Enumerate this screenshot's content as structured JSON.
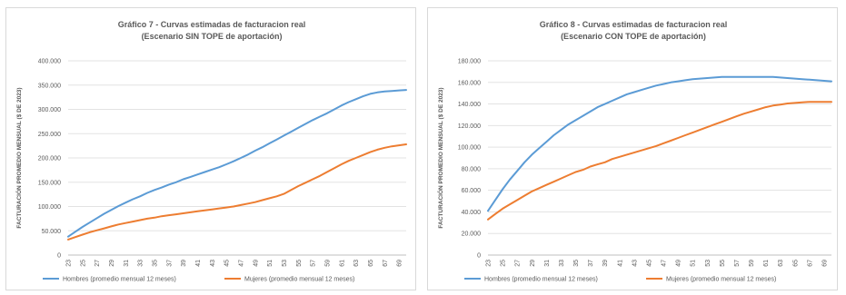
{
  "chart_data": [
    {
      "type": "line",
      "title": "Gráfico 7 - Curvas estimadas de facturacion real",
      "subtitle": "(Escenario SIN TOPE de aportación)",
      "ylabel": "FACTURACIÓN PROMEDIO MENSUAL ($ DE 2023)",
      "xlabel": "",
      "ylim": [
        0,
        400000
      ],
      "yticks": [
        "0",
        "50.000",
        "100.000",
        "150.000",
        "200.000",
        "250.000",
        "300.000",
        "350.000",
        "400.000"
      ],
      "x_tick_labels": [
        "23",
        "25",
        "27",
        "29",
        "31",
        "33",
        "35",
        "37",
        "39",
        "41",
        "43",
        "45",
        "47",
        "49",
        "51",
        "53",
        "55",
        "57",
        "59",
        "61",
        "63",
        "65",
        "67",
        "69"
      ],
      "x": [
        23,
        24,
        25,
        26,
        27,
        28,
        29,
        30,
        31,
        32,
        33,
        34,
        35,
        36,
        37,
        38,
        39,
        40,
        41,
        42,
        43,
        44,
        45,
        46,
        47,
        48,
        49,
        50,
        51,
        52,
        53,
        54,
        55,
        56,
        57,
        58,
        59,
        60,
        61,
        62,
        63,
        64,
        65,
        66,
        67,
        68,
        69,
        70
      ],
      "xlim": [
        23,
        70
      ],
      "grid": true,
      "legend_position": "bottom",
      "series": [
        {
          "name": "Hombres (promedio mensual 12 meses)",
          "color": "#5b9bd5",
          "values": [
            38000,
            48000,
            58000,
            67000,
            76000,
            85000,
            93000,
            101000,
            108000,
            115000,
            121000,
            128000,
            134000,
            139000,
            145000,
            150000,
            156000,
            161000,
            166000,
            171000,
            176000,
            181000,
            187000,
            193000,
            200000,
            207000,
            215000,
            222000,
            230000,
            238000,
            246000,
            254000,
            262000,
            270000,
            278000,
            285000,
            292000,
            300000,
            308000,
            315000,
            321000,
            327000,
            332000,
            335000,
            337000,
            338000,
            339000,
            340000
          ]
        },
        {
          "name": "Mujeres (promedio mensual 12 meses)",
          "color": "#ed7d31",
          "values": [
            32000,
            37000,
            42000,
            47000,
            51000,
            55000,
            59000,
            63000,
            66000,
            69000,
            72000,
            75000,
            77000,
            80000,
            82000,
            84000,
            86000,
            88000,
            90000,
            92000,
            94000,
            96000,
            98000,
            100000,
            103000,
            106000,
            109000,
            113000,
            117000,
            121000,
            126000,
            134000,
            142000,
            149000,
            156000,
            163000,
            171000,
            179000,
            187000,
            194000,
            200000,
            206000,
            212000,
            217000,
            221000,
            224000,
            226000,
            228000
          ]
        }
      ]
    },
    {
      "type": "line",
      "title": "Gráfico 8 - Curvas estimadas de facturacion real",
      "subtitle": "(Escenario CON TOPE de aportación)",
      "ylabel": "FACTURACIÓN PROMEDIO MENSUAL ($ DE 2023)",
      "xlabel": "",
      "ylim": [
        0,
        180000
      ],
      "yticks": [
        "0",
        "20.000",
        "40.000",
        "60.000",
        "80.000",
        "100.000",
        "120.000",
        "140.000",
        "160.000",
        "180.000"
      ],
      "x_tick_labels": [
        "23",
        "25",
        "27",
        "29",
        "31",
        "33",
        "35",
        "37",
        "39",
        "41",
        "43",
        "45",
        "47",
        "49",
        "51",
        "53",
        "55",
        "57",
        "59",
        "61",
        "63",
        "65",
        "67",
        "69"
      ],
      "x": [
        23,
        24,
        25,
        26,
        27,
        28,
        29,
        30,
        31,
        32,
        33,
        34,
        35,
        36,
        37,
        38,
        39,
        40,
        41,
        42,
        43,
        44,
        45,
        46,
        47,
        48,
        49,
        50,
        51,
        52,
        53,
        54,
        55,
        56,
        57,
        58,
        59,
        60,
        61,
        62,
        63,
        64,
        65,
        66,
        67,
        68,
        69,
        70
      ],
      "xlim": [
        23,
        70
      ],
      "grid": true,
      "legend_position": "bottom",
      "series": [
        {
          "name": "Hombres (promedio mensual 12 meses)",
          "color": "#5b9bd5",
          "values": [
            41000,
            51000,
            61000,
            70000,
            78000,
            86000,
            93000,
            99000,
            105000,
            111000,
            116000,
            121000,
            125000,
            129000,
            133000,
            137000,
            140000,
            143000,
            146000,
            149000,
            151000,
            153000,
            155000,
            157000,
            158500,
            160000,
            161000,
            162000,
            163000,
            163500,
            164000,
            164500,
            165000,
            165000,
            165000,
            165000,
            165000,
            165000,
            165000,
            165000,
            164500,
            164000,
            163500,
            163000,
            162500,
            162000,
            161500,
            161000
          ]
        },
        {
          "name": "Mujeres (promedio mensual 12 meses)",
          "color": "#ed7d31",
          "values": [
            33000,
            38000,
            43000,
            47000,
            51000,
            55000,
            59000,
            62000,
            65000,
            68000,
            71000,
            74000,
            77000,
            79000,
            82000,
            84000,
            86000,
            89000,
            91000,
            93000,
            95000,
            97000,
            99000,
            101000,
            103500,
            106000,
            108500,
            111000,
            113500,
            116000,
            118500,
            121000,
            123500,
            126000,
            128500,
            131000,
            133000,
            135000,
            137000,
            138500,
            139500,
            140500,
            141000,
            141500,
            142000,
            142000,
            142000,
            142000
          ]
        }
      ]
    }
  ]
}
